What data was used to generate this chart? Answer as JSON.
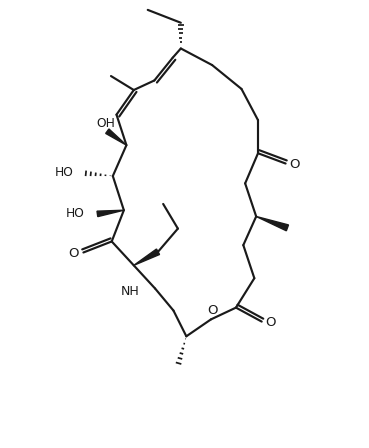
{
  "bg": "#ffffff",
  "lc": "#1a1a1a",
  "lw": 1.55,
  "fw": 3.69,
  "fh": 4.48,
  "dpi": 100,
  "xlim": [
    0,
    10
  ],
  "ylim": [
    0,
    12.15
  ]
}
